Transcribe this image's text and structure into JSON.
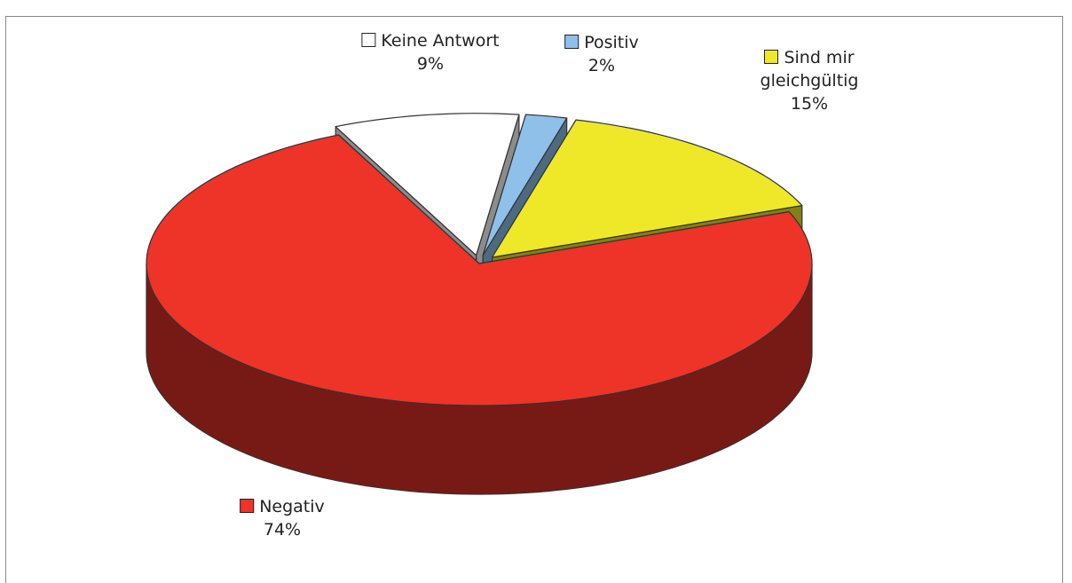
{
  "chart_data": {
    "type": "pie3d",
    "categories": [
      "Keine Antwort",
      "Positiv",
      "Sind mir gleichgültig",
      "Negativ"
    ],
    "values": [
      9,
      2,
      15,
      74
    ],
    "value_labels": [
      "9%",
      "2%",
      "15%",
      "74%"
    ],
    "colors": [
      "#ffffff",
      "#8ec0ea",
      "#eee829",
      "#ee3329"
    ]
  }
}
